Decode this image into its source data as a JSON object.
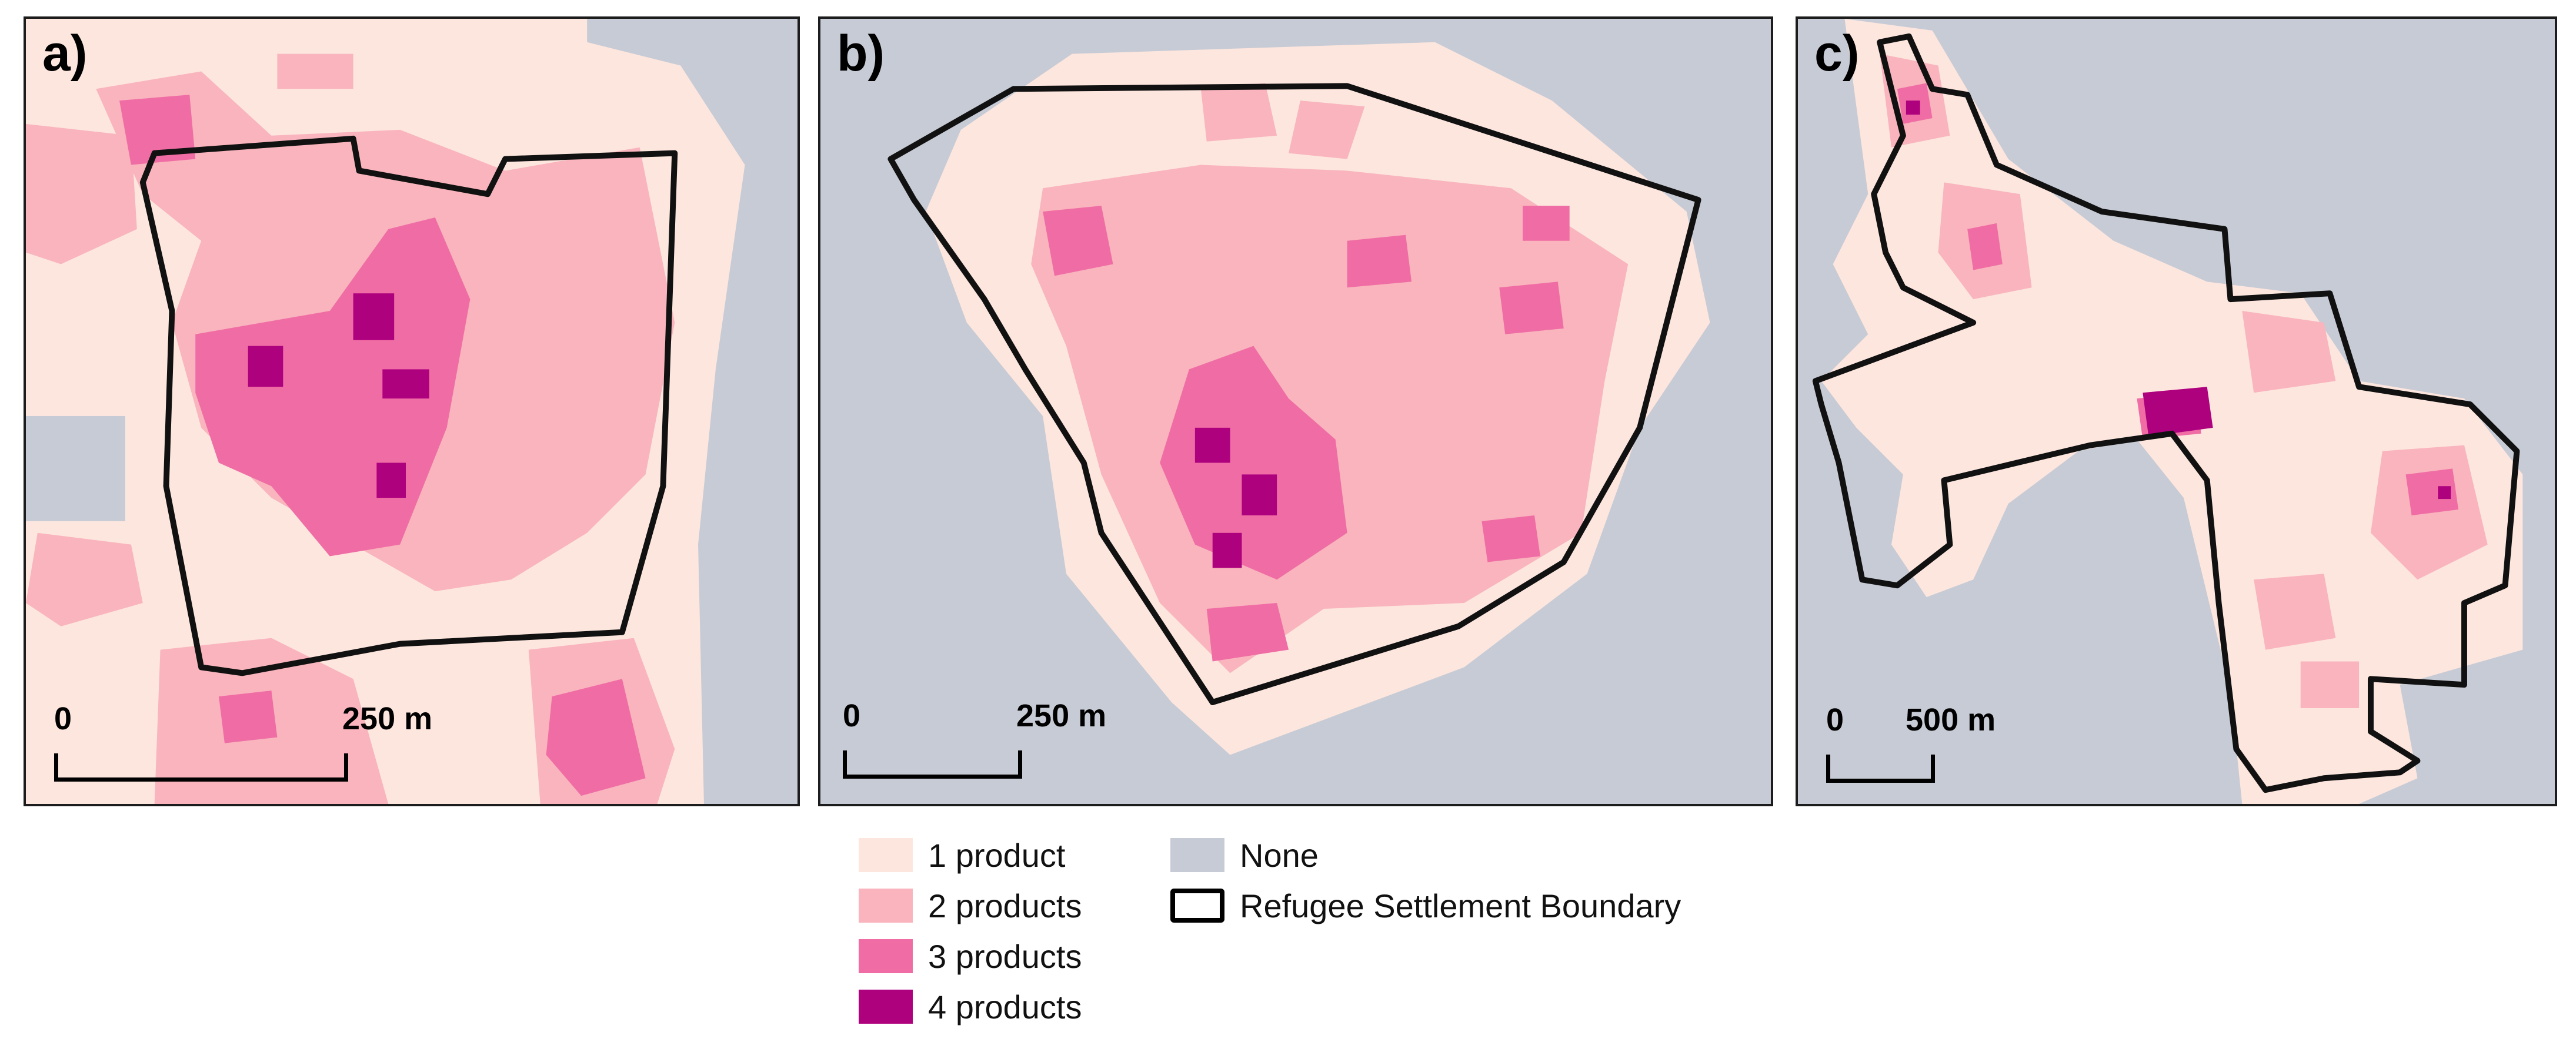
{
  "panels": [
    {
      "label": "a)",
      "scalebar": {
        "start": "0",
        "end": "250 m"
      }
    },
    {
      "label": "b)",
      "scalebar": {
        "start": "0",
        "end": "250 m"
      }
    },
    {
      "label": "c)",
      "scalebar": {
        "start": "0",
        "end": "500 m"
      }
    }
  ],
  "legend": {
    "items": [
      {
        "label": "1 product",
        "color": "#fde6de"
      },
      {
        "label": "2 products",
        "color": "#f9b4bd"
      },
      {
        "label": "3 products",
        "color": "#ef6da4"
      },
      {
        "label": "4 products",
        "color": "#ae017e"
      },
      {
        "label": "None",
        "color": "#c7cbd5"
      },
      {
        "label": "Refugee Settlement Boundary",
        "color": "#000000"
      }
    ]
  }
}
